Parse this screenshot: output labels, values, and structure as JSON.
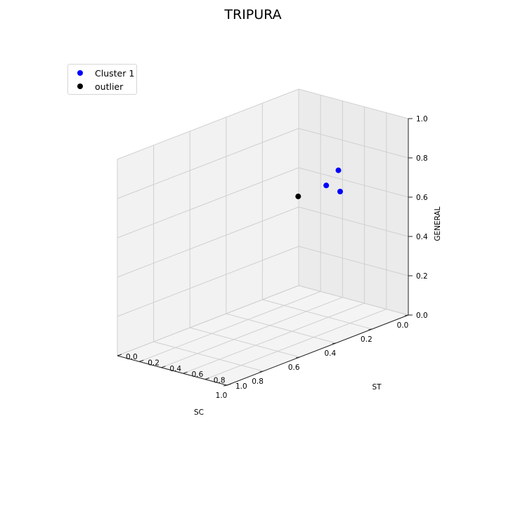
{
  "chart_data": {
    "type": "scatter",
    "projection": "3d",
    "title": "TRIPURA",
    "xlabel": "SC",
    "ylabel": "ST",
    "zlabel": "GENERAL",
    "xlim": [
      0,
      1
    ],
    "ylim": [
      0,
      1
    ],
    "zlim": [
      0,
      1
    ],
    "ticks": [
      "0.0",
      "0.2",
      "0.4",
      "0.6",
      "0.8",
      "1.0"
    ],
    "grid": true,
    "legend_position": "top-left",
    "series": [
      {
        "name": "Cluster 1",
        "color": "#0000ff",
        "points": [
          {
            "x": 0.12,
            "y": 0.45,
            "z": 0.62
          },
          {
            "x": 0.14,
            "y": 0.61,
            "z": 0.62
          },
          {
            "x": 0.18,
            "y": 0.66,
            "z": 0.75
          }
        ]
      },
      {
        "name": "outlier",
        "color": "#000000",
        "points": [
          {
            "x": 0.16,
            "y": 0.26,
            "z": 0.55
          }
        ]
      }
    ]
  }
}
